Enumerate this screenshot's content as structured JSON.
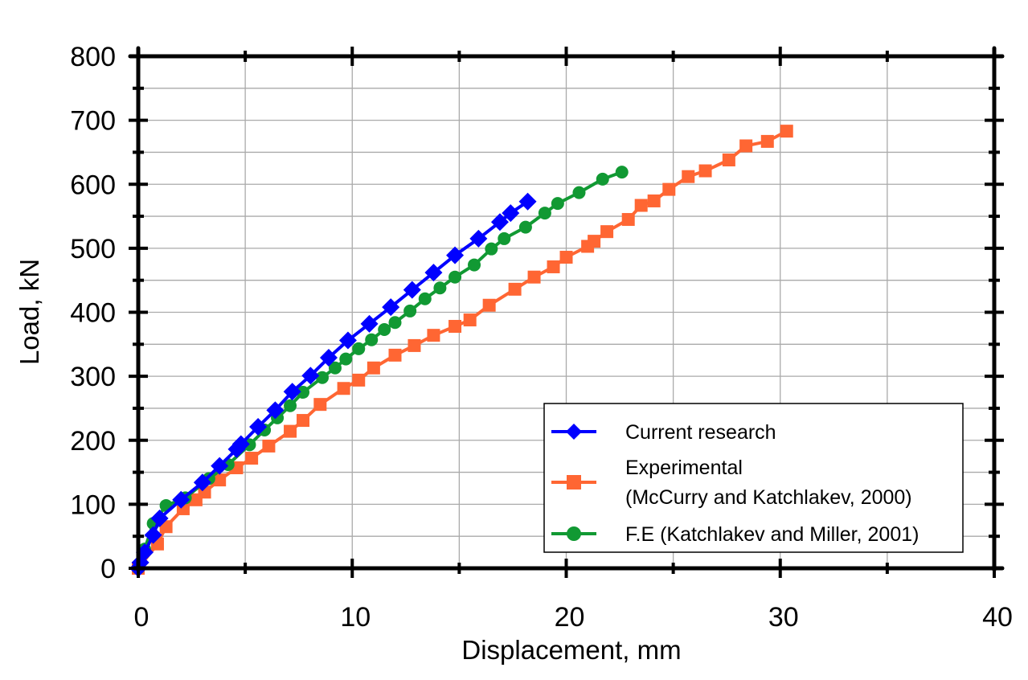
{
  "chart_data": {
    "type": "line",
    "title": "",
    "xlabel": "Displacement, mm",
    "ylabel": "Load, kN",
    "xlim": [
      0,
      40
    ],
    "ylim": [
      0,
      800
    ],
    "x_ticks": [
      0,
      10,
      20,
      30,
      40
    ],
    "y_ticks": [
      0,
      100,
      200,
      300,
      400,
      500,
      600,
      700,
      800
    ],
    "grid": true,
    "grid_x_step": 5,
    "grid_y_step": 50,
    "legend_position": "lower right",
    "series": [
      {
        "name": "Current research",
        "legend_lines": [
          "Current research"
        ],
        "color": "#0000ff",
        "marker": "diamond",
        "x": [
          0,
          0.1,
          0.3,
          0.7,
          1.0,
          2.0,
          3.0,
          3.8,
          4.6,
          4.8,
          5.6,
          6.4,
          7.2,
          8.05,
          8.9,
          9.8,
          10.8,
          11.8,
          12.8,
          13.8,
          14.8,
          15.9,
          16.9,
          17.4,
          18.2
        ],
        "y": [
          0,
          9,
          25,
          52,
          78,
          107,
          134,
          160,
          186,
          194,
          221,
          247,
          276,
          301,
          329,
          356,
          382,
          408,
          435,
          462,
          489,
          515,
          541,
          555,
          573
        ]
      },
      {
        "name": "Experimental (McCurry and Katchlakev, 2000)",
        "legend_lines": [
          "Experimental",
          "(McCurry and Katchlakev, 2000)"
        ],
        "color": "#ff6633",
        "marker": "square",
        "x": [
          0,
          0.9,
          1.3,
          2.1,
          2.7,
          3.1,
          3.8,
          4.6,
          5.3,
          6.1,
          7.1,
          7.7,
          8.5,
          9.6,
          10.3,
          11.0,
          12.0,
          12.9,
          13.8,
          14.8,
          15.5,
          16.4,
          17.6,
          18.5,
          19.4,
          20.0,
          21.0,
          21.3,
          21.9,
          22.9,
          23.5,
          24.1,
          24.8,
          25.7,
          26.5,
          27.6,
          28.4,
          29.4,
          30.3
        ],
        "y": [
          0,
          38,
          65,
          93,
          107,
          119,
          138,
          157,
          172,
          191,
          214,
          231,
          256,
          281,
          294,
          313,
          333,
          348,
          364,
          378,
          388,
          411,
          436,
          455,
          471,
          486,
          503,
          511,
          526,
          545,
          567,
          574,
          592,
          612,
          621,
          638,
          660,
          667,
          683
        ]
      },
      {
        "name": "F.E (Katchlakev and Miller, 2001)",
        "legend_lines": [
          "F.E (Katchlakev and Miller, 2001)"
        ],
        "color": "#119933",
        "marker": "circle",
        "x": [
          0,
          0.3,
          0.7,
          1.3,
          2.2,
          3.3,
          4.2,
          5.2,
          5.9,
          6.5,
          7.1,
          7.7,
          8.6,
          9.2,
          9.7,
          10.3,
          10.9,
          11.5,
          12.0,
          12.7,
          13.4,
          14.1,
          14.8,
          15.7,
          16.5,
          17.1,
          18.1,
          19.0,
          19.6,
          20.6,
          21.7,
          22.6
        ],
        "y": [
          0,
          30,
          70,
          98,
          110,
          140,
          162,
          193,
          216,
          235,
          254,
          275,
          298,
          313,
          327,
          343,
          357,
          373,
          384,
          402,
          421,
          438,
          455,
          474,
          499,
          515,
          533,
          555,
          570,
          587,
          608,
          619
        ]
      }
    ]
  }
}
